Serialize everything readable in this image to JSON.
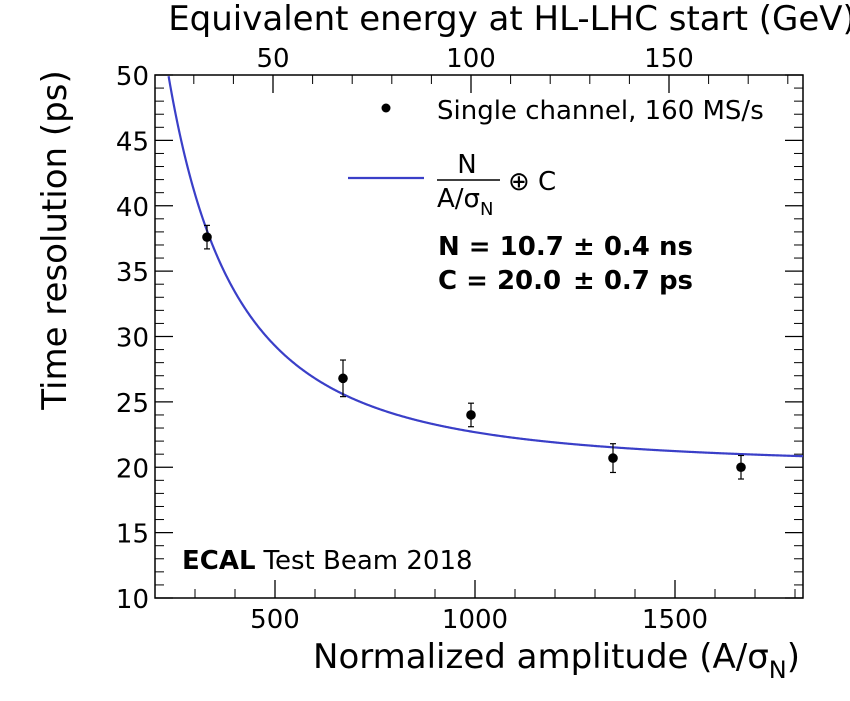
{
  "chart_data": {
    "type": "scatter",
    "title": "",
    "xlabel": "Normalized amplitude (A/σ",
    "xlabel_sub": "N",
    "xlabel_close": ")",
    "ylabel": "Time resolution (ps)",
    "top_xlabel": "Equivalent energy at HL-LHC start (GeV)",
    "xlim": [
      200,
      1820
    ],
    "ylim": [
      10,
      50
    ],
    "x_ticks": [
      500,
      1000,
      1500
    ],
    "x_tick_labels": [
      "500",
      "1000",
      "1500"
    ],
    "y_ticks": [
      10,
      15,
      20,
      25,
      30,
      35,
      40,
      45,
      50
    ],
    "y_tick_labels": [
      "10",
      "15",
      "20",
      "25",
      "30",
      "35",
      "40",
      "45",
      "50"
    ],
    "top_ticks": [
      50,
      100,
      150
    ],
    "top_tick_labels": [
      "50",
      "100",
      "150"
    ],
    "top_axis_amplitude_per_gev": 9.9,
    "grid": false,
    "legend_position": "top-right",
    "series": [
      {
        "name": "Single channel, 160 MS/s",
        "color": "#000000",
        "x": [
          330,
          670,
          990,
          1345,
          1665
        ],
        "y": [
          37.6,
          26.8,
          24.0,
          20.7,
          20.0
        ],
        "yerr": [
          0.9,
          1.4,
          0.9,
          1.1,
          0.9
        ]
      }
    ],
    "fit": {
      "name_numerator": "N",
      "name_denominator": "A/σ",
      "name_denominator_sub": "N",
      "name_suffix": "⊕ C",
      "color": "#3a3fc8",
      "N_ns": 10.7,
      "C_ps": 20.0,
      "N_label": "N = 10.7",
      "N_err": "± 0.4 ns",
      "C_label": "C = 20.0",
      "C_err": "± 0.7 ps"
    },
    "annotations": {
      "brand_bold": "ECAL",
      "brand_rest": "Test Beam 2018"
    }
  }
}
